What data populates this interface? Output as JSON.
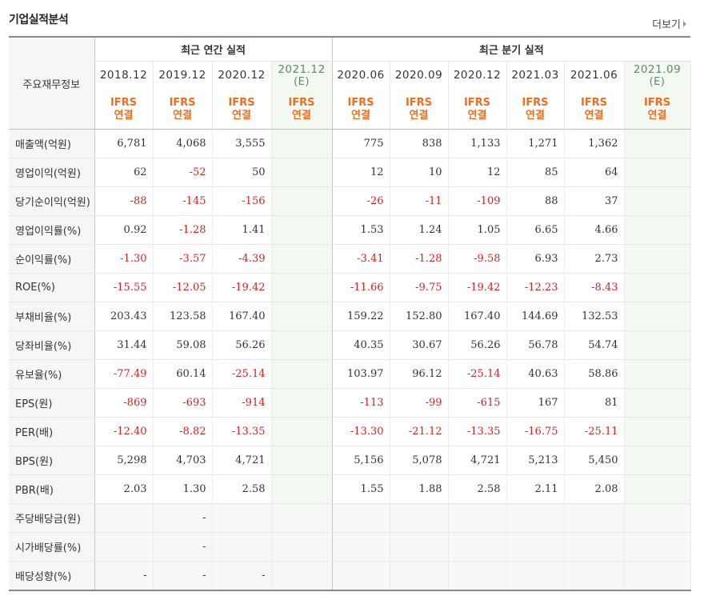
{
  "title": "기업실적분석",
  "more_label": "더보기",
  "header": {
    "corner_label": "주요재무정보",
    "annual_label": "최근 연간 실적",
    "quarterly_label": "최근 분기 실적",
    "periods": [
      {
        "date": "2018.12",
        "est": "",
        "std1": "IFRS",
        "std2": "연결"
      },
      {
        "date": "2019.12",
        "est": "",
        "std1": "IFRS",
        "std2": "연결"
      },
      {
        "date": "2020.12",
        "est": "",
        "std1": "IFRS",
        "std2": "연결"
      },
      {
        "date": "2021.12",
        "est": "(E)",
        "std1": "IFRS",
        "std2": "연결"
      },
      {
        "date": "2020.06",
        "est": "",
        "std1": "IFRS",
        "std2": "연결"
      },
      {
        "date": "2020.09",
        "est": "",
        "std1": "IFRS",
        "std2": "연결"
      },
      {
        "date": "2020.12",
        "est": "",
        "std1": "IFRS",
        "std2": "연결"
      },
      {
        "date": "2021.03",
        "est": "",
        "std1": "IFRS",
        "std2": "연결"
      },
      {
        "date": "2021.06",
        "est": "",
        "std1": "IFRS",
        "std2": "연결"
      },
      {
        "date": "2021.09",
        "est": "(E)",
        "std1": "IFRS",
        "std2": "연결"
      }
    ]
  },
  "rows": [
    {
      "label": "매출액(억원)",
      "values": [
        "6,781",
        "4,068",
        "3,555",
        "",
        "775",
        "838",
        "1,133",
        "1,271",
        "1,362",
        ""
      ]
    },
    {
      "label": "영업이익(억원)",
      "values": [
        "62",
        "-52",
        "50",
        "",
        "12",
        "10",
        "12",
        "85",
        "64",
        ""
      ]
    },
    {
      "label": "당기순이익(억원)",
      "values": [
        "-88",
        "-145",
        "-156",
        "",
        "-26",
        "-11",
        "-109",
        "88",
        "37",
        ""
      ]
    },
    {
      "label": "영업이익률(%)",
      "values": [
        "0.92",
        "-1.28",
        "1.41",
        "",
        "1.53",
        "1.24",
        "1.05",
        "6.65",
        "4.66",
        ""
      ]
    },
    {
      "label": "순이익률(%)",
      "values": [
        "-1.30",
        "-3.57",
        "-4.39",
        "",
        "-3.41",
        "-1.28",
        "-9.58",
        "6.93",
        "2.73",
        ""
      ]
    },
    {
      "label": "ROE(%)",
      "values": [
        "-15.55",
        "-12.05",
        "-19.42",
        "",
        "-11.66",
        "-9.75",
        "-19.42",
        "-12.23",
        "-8.43",
        ""
      ]
    },
    {
      "label": "부채비율(%)",
      "values": [
        "203.43",
        "123.58",
        "167.40",
        "",
        "159.22",
        "152.80",
        "167.40",
        "144.69",
        "132.53",
        ""
      ]
    },
    {
      "label": "당좌비율(%)",
      "values": [
        "31.44",
        "59.08",
        "56.26",
        "",
        "40.35",
        "30.67",
        "56.26",
        "56.78",
        "54.74",
        ""
      ]
    },
    {
      "label": "유보율(%)",
      "values": [
        "-77.49",
        "60.14",
        "-25.14",
        "",
        "103.97",
        "96.12",
        "-25.14",
        "40.63",
        "58.86",
        ""
      ]
    },
    {
      "label": "EPS(원)",
      "values": [
        "-869",
        "-693",
        "-914",
        "",
        "-113",
        "-99",
        "-615",
        "167",
        "81",
        ""
      ]
    },
    {
      "label": "PER(배)",
      "values": [
        "-12.40",
        "-8.82",
        "-13.35",
        "",
        "-13.30",
        "-21.12",
        "-13.35",
        "-16.75",
        "-25.11",
        ""
      ]
    },
    {
      "label": "BPS(원)",
      "values": [
        "5,298",
        "4,703",
        "4,721",
        "",
        "5,156",
        "5,078",
        "4,721",
        "5,213",
        "5,450",
        ""
      ]
    },
    {
      "label": "PBR(배)",
      "values": [
        "2.03",
        "1.30",
        "2.58",
        "",
        "1.55",
        "1.88",
        "2.58",
        "2.11",
        "2.08",
        ""
      ]
    },
    {
      "label": "주당배당금(원)",
      "values": [
        "",
        "-",
        "",
        "",
        "",
        "",
        "",
        "",
        "",
        ""
      ]
    },
    {
      "label": "시가배당률(%)",
      "values": [
        "",
        "-",
        "",
        "",
        "",
        "",
        "",
        "",
        "",
        ""
      ]
    },
    {
      "label": "배당성향(%)",
      "values": [
        "-",
        "-",
        "-",
        "",
        "",
        "",
        "",
        "",
        "",
        ""
      ]
    }
  ],
  "colors": {
    "negative": "#d12222",
    "standard": "#ee6e1e",
    "estimate": "#5e8a6a"
  }
}
